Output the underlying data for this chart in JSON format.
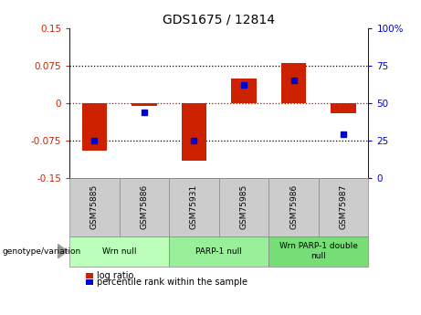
{
  "title": "GDS1675 / 12814",
  "samples": [
    "GSM75885",
    "GSM75886",
    "GSM75931",
    "GSM75985",
    "GSM75986",
    "GSM75987"
  ],
  "log_ratios": [
    -0.095,
    -0.005,
    -0.115,
    0.05,
    0.08,
    -0.02
  ],
  "percentile_ranks": [
    25,
    44,
    25,
    62,
    65,
    29
  ],
  "ylim_left": [
    -0.15,
    0.15
  ],
  "ylim_right": [
    0,
    100
  ],
  "yticks_left": [
    -0.15,
    -0.075,
    0,
    0.075,
    0.15
  ],
  "yticks_right": [
    0,
    25,
    50,
    75,
    100
  ],
  "ytick_labels_left": [
    "-0.15",
    "-0.075",
    "0",
    "0.075",
    "0.15"
  ],
  "ytick_labels_right": [
    "0",
    "25",
    "50",
    "75",
    "100%"
  ],
  "bar_color": "#cc2200",
  "dot_color": "#0000cc",
  "bar_width": 0.5,
  "groups": [
    {
      "label": "Wrn null",
      "indices": [
        0,
        1
      ],
      "color": "#bbffbb"
    },
    {
      "label": "PARP-1 null",
      "indices": [
        2,
        3
      ],
      "color": "#99ee99"
    },
    {
      "label": "Wrn PARP-1 double\nnull",
      "indices": [
        4,
        5
      ],
      "color": "#77dd77"
    }
  ],
  "legend_log_ratio_label": "log ratio",
  "legend_percentile_label": "percentile rank within the sample",
  "genotype_label": "genotype/variation",
  "zero_line_color": "#cc0000",
  "grid_color": "#000000",
  "left_tick_color": "#cc2200",
  "right_tick_color": "#0000cc",
  "bg_color": "#ffffff",
  "plot_bg_color": "#ffffff",
  "sample_box_color": "#cccccc",
  "sample_box_edge": "#888888"
}
